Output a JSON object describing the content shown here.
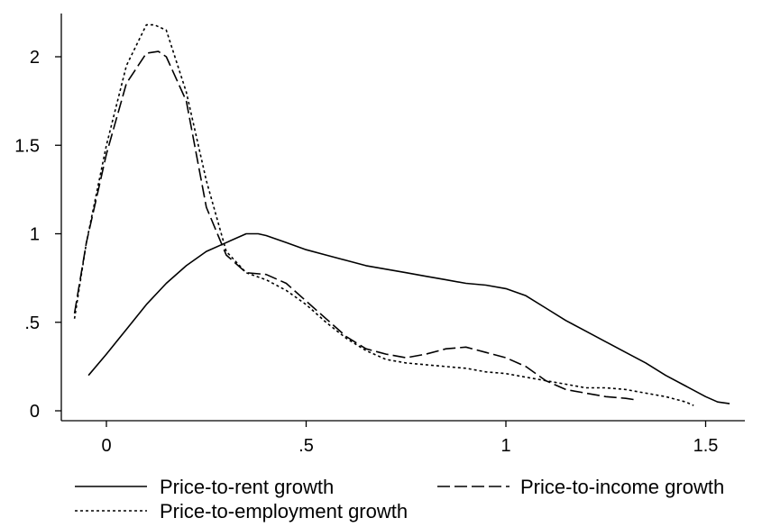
{
  "chart_data": {
    "type": "line",
    "title": "",
    "xlabel": "",
    "ylabel": "",
    "xlim": [
      -0.1,
      1.6
    ],
    "ylim": [
      -0.05,
      2.25
    ],
    "x_ticks": [
      0,
      0.5,
      1,
      1.5
    ],
    "x_tick_labels": [
      "0",
      ".5",
      "1",
      "1.5"
    ],
    "y_ticks": [
      0,
      0.5,
      1,
      1.5,
      2
    ],
    "y_tick_labels": [
      "0",
      ".5",
      "1",
      "1.5",
      "2"
    ],
    "grid": false,
    "legend_position": "bottom",
    "series": [
      {
        "name": "Price-to-rent growth",
        "style": "solid",
        "color": "#000000",
        "x": [
          -0.045,
          0.0,
          0.05,
          0.1,
          0.15,
          0.2,
          0.25,
          0.3,
          0.35,
          0.38,
          0.4,
          0.45,
          0.5,
          0.55,
          0.6,
          0.65,
          0.7,
          0.75,
          0.8,
          0.85,
          0.9,
          0.95,
          1.0,
          1.05,
          1.1,
          1.15,
          1.2,
          1.25,
          1.3,
          1.35,
          1.4,
          1.45,
          1.5,
          1.53,
          1.56
        ],
        "y": [
          0.2,
          0.32,
          0.46,
          0.6,
          0.72,
          0.82,
          0.9,
          0.95,
          1.0,
          1.0,
          0.99,
          0.95,
          0.91,
          0.88,
          0.85,
          0.82,
          0.8,
          0.78,
          0.76,
          0.74,
          0.72,
          0.71,
          0.69,
          0.65,
          0.58,
          0.51,
          0.45,
          0.39,
          0.33,
          0.27,
          0.2,
          0.14,
          0.08,
          0.05,
          0.04
        ]
      },
      {
        "name": "Price-to-income growth",
        "style": "dashed",
        "color": "#000000",
        "x": [
          -0.08,
          -0.05,
          0.0,
          0.05,
          0.1,
          0.13,
          0.15,
          0.2,
          0.25,
          0.3,
          0.35,
          0.4,
          0.45,
          0.5,
          0.55,
          0.6,
          0.65,
          0.7,
          0.75,
          0.8,
          0.85,
          0.9,
          0.95,
          1.0,
          1.05,
          1.1,
          1.15,
          1.2,
          1.25,
          1.3,
          1.33
        ],
        "y": [
          0.55,
          0.95,
          1.45,
          1.85,
          2.02,
          2.03,
          2.0,
          1.75,
          1.15,
          0.88,
          0.78,
          0.77,
          0.72,
          0.62,
          0.52,
          0.42,
          0.35,
          0.32,
          0.3,
          0.32,
          0.35,
          0.36,
          0.33,
          0.3,
          0.25,
          0.17,
          0.12,
          0.1,
          0.08,
          0.07,
          0.06
        ]
      },
      {
        "name": "Price-to-employment growth",
        "style": "dotted",
        "color": "#000000",
        "x": [
          -0.08,
          -0.05,
          0.0,
          0.05,
          0.1,
          0.12,
          0.15,
          0.2,
          0.25,
          0.3,
          0.35,
          0.4,
          0.45,
          0.5,
          0.55,
          0.6,
          0.65,
          0.7,
          0.75,
          0.8,
          0.85,
          0.9,
          0.95,
          1.0,
          1.05,
          1.1,
          1.15,
          1.2,
          1.25,
          1.3,
          1.35,
          1.4,
          1.45,
          1.47
        ],
        "y": [
          0.52,
          0.95,
          1.5,
          1.95,
          2.18,
          2.18,
          2.15,
          1.8,
          1.3,
          0.9,
          0.78,
          0.74,
          0.68,
          0.6,
          0.5,
          0.41,
          0.34,
          0.29,
          0.27,
          0.26,
          0.25,
          0.24,
          0.22,
          0.21,
          0.19,
          0.17,
          0.15,
          0.13,
          0.13,
          0.12,
          0.1,
          0.08,
          0.05,
          0.03
        ]
      }
    ]
  }
}
